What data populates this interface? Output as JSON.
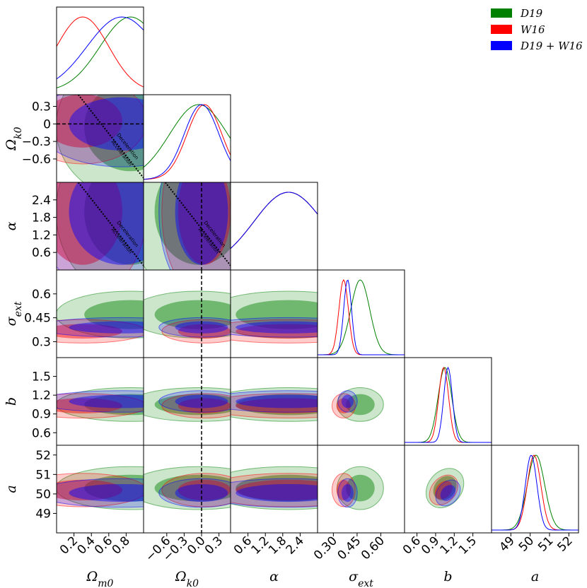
{
  "chart_data": {
    "type": "corner",
    "parameters": [
      {
        "key": "Om",
        "label": "Ω_m0",
        "range": [
          0.0,
          1.0
        ],
        "ticks": [
          0.2,
          0.4,
          0.6,
          0.8
        ],
        "tick_labels": [
          "0.2",
          "0.4",
          "0.6",
          "0.8"
        ]
      },
      {
        "key": "Ok",
        "label": "Ω_k0",
        "range": [
          -1.0,
          0.5
        ],
        "ticks": [
          -0.6,
          -0.3,
          0.0,
          0.3
        ],
        "tick_labels": [
          "−0.6",
          "−0.3",
          "0.0",
          "0.3"
        ]
      },
      {
        "key": "alpha",
        "label": "α",
        "range": [
          0.0,
          3.0
        ],
        "ticks": [
          0.6,
          1.2,
          1.8,
          2.4
        ],
        "tick_labels": [
          "0.6",
          "1.2",
          "1.8",
          "2.4"
        ]
      },
      {
        "key": "sigma",
        "label": "σ_ext",
        "range": [
          0.2,
          0.75
        ],
        "ticks": [
          0.3,
          0.45,
          0.6
        ],
        "tick_labels": [
          "0.30",
          "0.45",
          "0.60"
        ]
      },
      {
        "key": "b",
        "label": "b",
        "range": [
          0.4,
          1.8
        ],
        "ticks": [
          0.6,
          0.9,
          1.2,
          1.5
        ],
        "tick_labels": [
          "0.6",
          "0.9",
          "1.2",
          "1.5"
        ]
      },
      {
        "key": "a",
        "label": "a",
        "range": [
          48.0,
          52.5
        ],
        "ticks": [
          49,
          50,
          51,
          52
        ],
        "tick_labels": [
          "49",
          "50",
          "51",
          "52"
        ]
      }
    ],
    "y_tick_labels": {
      "Ok": [
        "0.3",
        "0",
        "−0.3",
        "−0.6"
      ],
      "alpha": [
        "2.4",
        "1.8",
        "1.2",
        "0.6"
      ],
      "sigma": [
        "0.6",
        "0.45",
        "0.3"
      ],
      "b": [
        "1.5",
        "1.2",
        "0.9",
        "0.6"
      ],
      "a": [
        "52",
        "51",
        "50",
        "49"
      ]
    },
    "series": [
      {
        "name": "D19",
        "label": "D19",
        "color": "#008000",
        "mean": {
          "Om": 0.85,
          "Ok": -0.05,
          "alpha": 2.0,
          "sigma": 0.47,
          "b": 1.05,
          "a": 50.3
        },
        "sd": {
          "Om": 0.35,
          "Ok": 0.5,
          "alpha": 1.2,
          "sigma": 0.06,
          "b": 0.11,
          "a": 0.45
        }
      },
      {
        "name": "W16",
        "label": "W16",
        "color": "#ff0000",
        "mean": {
          "Om": 0.3,
          "Ok": 0.05,
          "alpha": 2.0,
          "sigma": 0.365,
          "b": 1.03,
          "a": 50.2
        },
        "sd": {
          "Om": 0.3,
          "Ok": 0.3,
          "alpha": 1.2,
          "sigma": 0.03,
          "b": 0.08,
          "a": 0.35
        }
      },
      {
        "name": "D19+W16",
        "label": "D19 + W16",
        "color": "#0000ff",
        "mean": {
          "Om": 0.75,
          "Ok": 0.0,
          "alpha": 2.0,
          "sigma": 0.39,
          "b": 1.1,
          "a": 50.05
        },
        "sd": {
          "Om": 0.4,
          "Ok": 0.3,
          "alpha": 1.2,
          "sigma": 0.025,
          "b": 0.07,
          "a": 0.3
        }
      }
    ],
    "annotations": {
      "upper_label": "Deceleration",
      "lower_label": "Acceleration"
    },
    "reference_line_Ok": 0.0,
    "legend_position": "top-right",
    "colors": {
      "D19": "#008000",
      "W16": "#ff0000",
      "D19+W16": "#0000ff"
    }
  }
}
